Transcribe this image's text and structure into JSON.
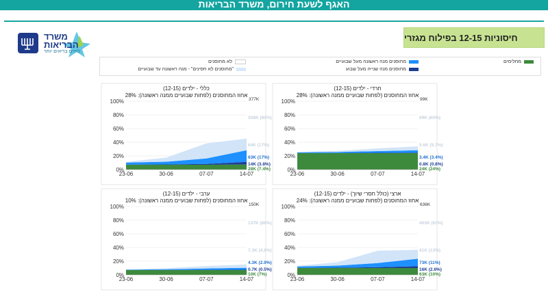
{
  "header": {
    "title": "האגף לשעת חירום, משרד הבריאות"
  },
  "logo": {
    "line1": "משרד",
    "line2": "הבריאות",
    "tagline": "לחיים בריאים יותר"
  },
  "section_title": "חיסוניות 12-15 בפילוח מגזרי",
  "legend": {
    "items": [
      {
        "label": "מחלימים",
        "color": "#3d8a3d"
      },
      {
        "label": "מחוסנים מנה ראשונה מעל שבועיים",
        "color": "#1e90ff"
      },
      {
        "label": "מחוסנים מנה שנייה מעל שבוע",
        "color": "#1c3f94"
      },
      {
        "label": "לא מחוסנים",
        "color": "#ffffff"
      },
      {
        "label": "\"מחוסנים לא חסינים\" - מנה ראשונה עד שבועיים",
        "color": "#d7e8fa"
      }
    ]
  },
  "colors": {
    "recovered": "#3d8a3d",
    "dose1": "#1e90ff",
    "dose2": "#1c3f94",
    "notimmune": "#cfe3f8"
  },
  "chart_data": [
    {
      "type": "area",
      "title": "כללי - ילדים (12-15)",
      "subtitle": "אחוז המחוסנים (לפחות שבועיים ממנה ראשונה): 28%",
      "total": "377K",
      "x": [
        "23-06",
        "30-06",
        "07-07",
        "14-07"
      ],
      "ylim": [
        0,
        100
      ],
      "yticks": [
        "0%",
        "20%",
        "40%",
        "60%",
        "80%",
        "100%"
      ],
      "series": {
        "recovered": [
          7,
          7,
          7,
          7.4
        ],
        "dose2": [
          0.2,
          0.5,
          1.2,
          3.8
        ],
        "dose1": [
          3,
          4,
          8,
          17
        ],
        "notimmune": [
          1,
          6,
          22,
          17
        ]
      },
      "labels": [
        {
          "text": "308K (80%)",
          "faint": true
        },
        {
          "text": "64K (17%)",
          "faint": true
        },
        {
          "text": "63K (17%)",
          "dose1": true
        },
        {
          "text": "14K (3.8%)",
          "dose2": true
        },
        {
          "text": "28K (7.4%)",
          "rec": true
        }
      ]
    },
    {
      "type": "area",
      "title": "חרדי - ילדים (12-15)",
      "subtitle": "אחוז המחוסנים (לפחות שבועיים ממנה ראשונה): 28%",
      "total": "99K",
      "x": [
        "23-06",
        "30-06",
        "07-07",
        "14-07"
      ],
      "ylim": [
        0,
        100
      ],
      "yticks": [
        "0%",
        "20%",
        "40%",
        "60%",
        "80%",
        "100%"
      ],
      "series": {
        "recovered": [
          24,
          24,
          24,
          24
        ],
        "dose2": [
          0.2,
          0.3,
          0.5,
          0.8
        ],
        "dose1": [
          1,
          1.5,
          2.5,
          3.4
        ],
        "notimmune": [
          0.5,
          1.5,
          4,
          5.7
        ]
      },
      "labels": [
        {
          "text": "69K (60%)",
          "faint": true
        },
        {
          "text": "5.6K (5.7%)",
          "faint": true
        },
        {
          "text": "3.4K (3.4%)",
          "dose1": true
        },
        {
          "text": "0.8K (0.8%)",
          "dose2": true
        },
        {
          "text": "24K (24%)",
          "rec": true
        }
      ]
    },
    {
      "type": "area",
      "title": "ערבי - ילדים (12-15)",
      "subtitle": "אחוז המחוסנים (לפחות שבועיים ממנה ראשונה): 10%",
      "total": "150K",
      "x": [
        "23-06",
        "30-06",
        "07-07",
        "14-07"
      ],
      "ylim": [
        0,
        100
      ],
      "yticks": [
        "0%",
        "20%",
        "40%",
        "60%",
        "80%",
        "100%"
      ],
      "series": {
        "recovered": [
          7,
          7,
          7,
          7
        ],
        "dose2": [
          0.1,
          0.2,
          0.4,
          0.5
        ],
        "dose1": [
          0.5,
          1,
          2,
          2.9
        ],
        "notimmune": [
          0.5,
          1.5,
          3.5,
          4.8
        ]
      },
      "labels": [
        {
          "text": "137K (88%)",
          "faint": true
        },
        {
          "text": "7.3K (4.8%)",
          "faint": true
        },
        {
          "text": "4.3K (2.9%)",
          "dose1": true
        },
        {
          "text": "0.7K (0.5%)",
          "dose2": true
        },
        {
          "text": "10K (7%)",
          "rec": true
        }
      ]
    },
    {
      "type": "area",
      "title": "ארצי (כולל חסרי שיוך) - ילדים (12-15)",
      "subtitle": "אחוז המחוסנים (לפחות שבועיים ממנה ראשונה): 24%",
      "total": "636K",
      "x": [
        "23-06",
        "30-06",
        "07-07",
        "14-07"
      ],
      "ylim": [
        0,
        100
      ],
      "yticks": [
        "0%",
        "20%",
        "40%",
        "60%",
        "80%",
        "100%"
      ],
      "series": {
        "recovered": [
          10,
          10,
          10,
          10
        ],
        "dose2": [
          0.2,
          0.5,
          1.2,
          2.6
        ],
        "dose1": [
          2,
          3,
          6,
          11
        ],
        "notimmune": [
          1,
          5,
          18,
          13
        ]
      },
      "labels": [
        {
          "text": "403K (63%)",
          "faint": true
        },
        {
          "text": "81K (13%)",
          "faint": true
        },
        {
          "text": "73K (11%)",
          "dose1": true
        },
        {
          "text": "16K (2.6%)",
          "dose2": true
        },
        {
          "text": "63K (10%)",
          "rec": true
        }
      ]
    }
  ]
}
